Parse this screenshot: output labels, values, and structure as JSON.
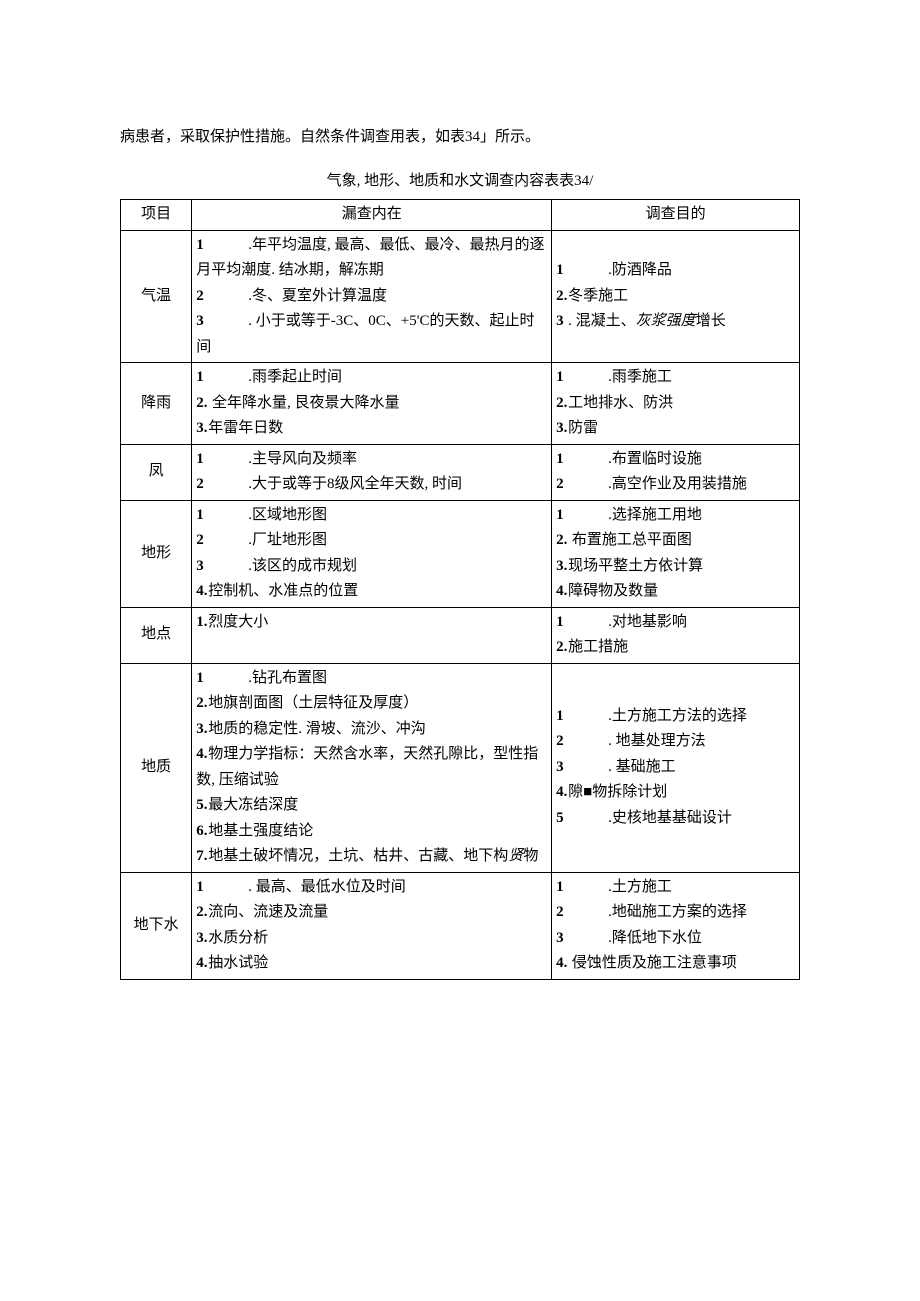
{
  "intro": "病患者，采取保护性措施。自然条件调查用表，如表34」所示。",
  "caption": "气象, 地形、地质和水文调查内容表表34/",
  "headers": {
    "c1": "项目",
    "c2": "漏查内在",
    "c3": "调查目的"
  },
  "rows": [
    {
      "label": "气温",
      "content": [
        {
          "n": "1",
          "gap": true,
          "t": ".年平均温度, 最高、最低、最冷、最热月的逐月平均潮度. 结冰期，解冻期"
        },
        {
          "n": "2",
          "gap": true,
          "t": ".冬、夏室外计算温度"
        },
        {
          "n": "3",
          "gap": true,
          "t": ". 小于或等于-3C、0C、+5'C的天数、起止时间"
        }
      ],
      "purpose_html": "<span class=\"li\"><span class=\"n\">1</span><span class=\"gap\"></span>.防酒降品</span><span class=\"li\"><span class=\"n\">2.</span>冬季施工</span><span class=\"li\"><span class=\"n\">3</span>. 混凝土、<span class=\"ital\">灰浆强度</span>增长</span>"
    },
    {
      "label": "降雨",
      "content": [
        {
          "n": "1",
          "gap": true,
          "t": ".雨季起止时间"
        },
        {
          "n": "2.",
          "gap": false,
          "t": " 全年降水量, 艮夜景大降水量"
        },
        {
          "n": "3.",
          "gap": false,
          "t": "年雷年日数"
        }
      ],
      "purpose": [
        {
          "n": "1",
          "gap": true,
          "t": ".雨季施工"
        },
        {
          "n": "2.",
          "gap": false,
          "t": "工地排水、防洪"
        },
        {
          "n": "3.",
          "gap": false,
          "t": "防雷"
        }
      ]
    },
    {
      "label": "凤",
      "content": [
        {
          "n": "1",
          "gap": true,
          "t": ".主导风向及频率"
        },
        {
          "n": "2",
          "gap": true,
          "t": ".大于或等于8级风全年天数, 时间"
        }
      ],
      "purpose": [
        {
          "n": "1",
          "gap": true,
          "t": ".布置临时设施"
        },
        {
          "n": "2",
          "gap": true,
          "t": ".高空作业及用装措施"
        }
      ]
    },
    {
      "label": "地形",
      "content": [
        {
          "n": "1",
          "gap": true,
          "t": ".区域地形图"
        },
        {
          "n": "2",
          "gap": true,
          "t": ".厂址地形图"
        },
        {
          "n": "3",
          "gap": true,
          "t": ".该区的成市规划"
        },
        {
          "n": "4.",
          "gap": false,
          "t": "控制机、水准点的位置"
        }
      ],
      "purpose": [
        {
          "n": "1",
          "gap": true,
          "t": ".选择施工用地"
        },
        {
          "n": "2.",
          "gap": false,
          "t": " 布置施工总平面图"
        },
        {
          "n": "3.",
          "gap": false,
          "t": "现场平整土方依计算"
        },
        {
          "n": "4.",
          "gap": false,
          "t": "障碍物及数量"
        }
      ]
    },
    {
      "label": "地点",
      "content": [
        {
          "n": "1.",
          "gap": false,
          "t": "烈度大小"
        }
      ],
      "purpose": [
        {
          "n": "1",
          "gap": true,
          "t": ".对地基影响"
        },
        {
          "n": "2.",
          "gap": false,
          "t": "施工措施"
        }
      ]
    },
    {
      "label": "地质",
      "content_html": "<span class=\"li\"><span class=\"n\">1</span><span class=\"gap\"></span>.钻孔布置图</span><span class=\"li\"><span class=\"n\">2.</span>地旗剖面图（土层特征及厚度）</span><span class=\"li\"><span class=\"n\">3.</span>地质的稳定性. 滑坡、流沙、冲沟</span><span class=\"li\"><span class=\"n\">4.</span>物理力学指标：天然含水率，天然孔隙比，型性指数, 压缩试验</span><span class=\"li\"><span class=\"n\">5.</span>最大冻结深度</span><span class=\"li\"><span class=\"n\">6.</span>地基土强度结论</span><span class=\"li\"><span class=\"n\">7.</span>地基土破坏情况，土坑、枯井、古藏、地下构<span class=\"ital\">贤</span>物</span>",
      "purpose": [
        {
          "n": "1",
          "gap": true,
          "t": ".土方施工方法的选择"
        },
        {
          "n": "2",
          "gap": true,
          "t": ". 地基处理方法"
        },
        {
          "n": "3",
          "gap": true,
          "t": ". 基础施工"
        },
        {
          "n": "4.",
          "gap": false,
          "t": "隙■物拆除计划"
        },
        {
          "n": "5",
          "gap": true,
          "t": ".史核地基基础设计"
        }
      ]
    },
    {
      "label": "地下水",
      "content": [
        {
          "n": "1",
          "gap": true,
          "t": ". 最高、最低水位及时间"
        },
        {
          "n": "2.",
          "gap": false,
          "t": "流向、流速及流量"
        },
        {
          "n": "3.",
          "gap": false,
          "t": "水质分析"
        },
        {
          "n": "4.",
          "gap": false,
          "t": "抽水试验"
        }
      ],
      "purpose": [
        {
          "n": "1",
          "gap": true,
          "t": ".土方施工"
        },
        {
          "n": "2",
          "gap": true,
          "t": ".地础施工方案的选择"
        },
        {
          "n": "3",
          "gap": true,
          "t": ".降低地下水位"
        },
        {
          "n": "4.",
          "gap": false,
          "t": " 侵蚀性质及施工注意事项"
        }
      ]
    }
  ]
}
